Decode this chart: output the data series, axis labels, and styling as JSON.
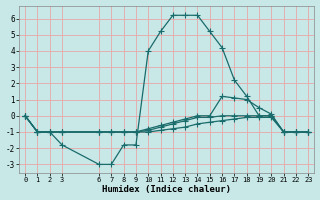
{
  "xlabel": "Humidex (Indice chaleur)",
  "background_color": "#c8e8e8",
  "grid_color": "#e8a8a8",
  "line_color": "#1a6b6b",
  "xlim": [
    -0.5,
    23.5
  ],
  "ylim": [
    -3.5,
    6.8
  ],
  "xticks": [
    0,
    1,
    2,
    3,
    6,
    7,
    8,
    9,
    10,
    11,
    12,
    13,
    14,
    15,
    16,
    17,
    18,
    19,
    20,
    21,
    22,
    23
  ],
  "yticks": [
    -3,
    -2,
    -1,
    0,
    1,
    2,
    3,
    4,
    5,
    6
  ],
  "line1_x": [
    0,
    1,
    2,
    3,
    6,
    7,
    8,
    9,
    10,
    11,
    12,
    13,
    14,
    15,
    16,
    17,
    18,
    19,
    20,
    21,
    22,
    23
  ],
  "line1_y": [
    0.0,
    -1.0,
    -1.0,
    -1.8,
    -3.0,
    -3.0,
    -1.8,
    -1.8,
    4.0,
    5.2,
    6.2,
    6.2,
    6.2,
    5.2,
    4.2,
    2.2,
    1.2,
    0.0,
    0.0,
    -1.0,
    -1.0,
    -1.0
  ],
  "line2_x": [
    0,
    1,
    2,
    3,
    6,
    7,
    8,
    9,
    10,
    11,
    12,
    13,
    14,
    15,
    16,
    17,
    18,
    19,
    20,
    21,
    22,
    23
  ],
  "line2_y": [
    0.0,
    -1.0,
    -1.0,
    -1.0,
    -1.0,
    -1.0,
    -1.0,
    -1.0,
    -0.8,
    -0.6,
    -0.4,
    -0.2,
    0.0,
    0.0,
    1.2,
    1.1,
    1.0,
    0.5,
    0.1,
    -1.0,
    -1.0,
    -1.0
  ],
  "line3_x": [
    0,
    1,
    2,
    3,
    6,
    7,
    8,
    9,
    10,
    11,
    12,
    13,
    14,
    15,
    16,
    17,
    18,
    19,
    20,
    21,
    22,
    23
  ],
  "line3_y": [
    0.0,
    -1.0,
    -1.0,
    -1.0,
    -1.0,
    -1.0,
    -1.0,
    -1.0,
    -0.9,
    -0.7,
    -0.5,
    -0.3,
    -0.1,
    -0.1,
    0.0,
    0.0,
    0.0,
    0.0,
    0.0,
    -1.0,
    -1.0,
    -1.0
  ],
  "line4_x": [
    0,
    1,
    2,
    3,
    6,
    7,
    8,
    9,
    10,
    11,
    12,
    13,
    14,
    15,
    16,
    17,
    18,
    19,
    20,
    21,
    22,
    23
  ],
  "line4_y": [
    0.0,
    -1.0,
    -1.0,
    -1.0,
    -1.0,
    -1.0,
    -1.0,
    -1.0,
    -1.0,
    -0.9,
    -0.8,
    -0.7,
    -0.5,
    -0.4,
    -0.3,
    -0.2,
    -0.1,
    -0.1,
    -0.1,
    -1.0,
    -1.0,
    -1.0
  ]
}
